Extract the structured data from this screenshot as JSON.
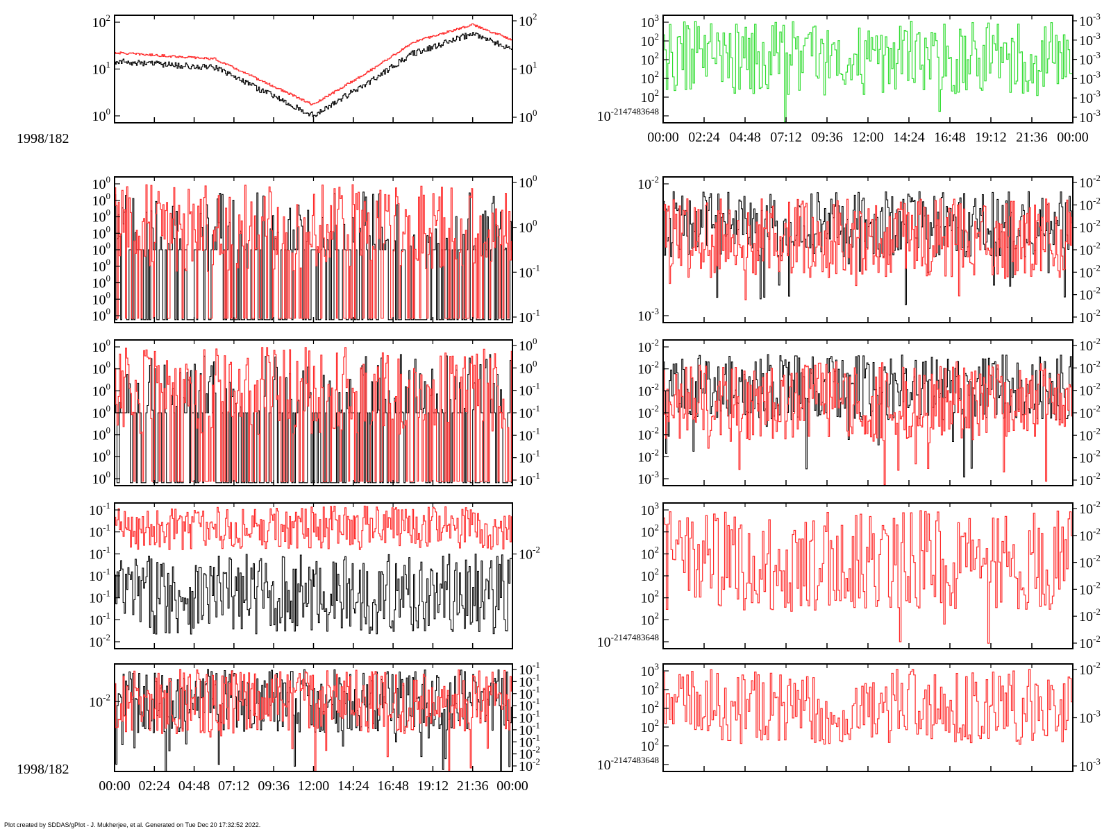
{
  "date_label_top": "1998/182",
  "date_label_bottom": "1998/182",
  "footer": "Plot created by SDDAS/gPlot - J. Mukherjee, et al.  Generated on Tue Dec 20 17:32:52 2022.",
  "colors": {
    "primary": "#000000",
    "secondary": "#ff0000",
    "tertiary": "#00ff00"
  },
  "chart_data": [
    {
      "id": "left-1",
      "type": "line",
      "scale": "log",
      "x_range": [
        "00:00",
        "00:00"
      ],
      "left_ticks": [
        "10^2",
        "10^1",
        "10^0"
      ],
      "right_ticks": [
        "10^2",
        "10^1",
        "10^0"
      ],
      "series": [
        {
          "color": "black",
          "profile": "spectrum_low",
          "noise": 0.5
        },
        {
          "color": "red",
          "profile": "spectrum_high",
          "noise": 0.15
        }
      ]
    },
    {
      "id": "left-2",
      "type": "line",
      "scale": "log",
      "left_ticks": [
        "10^0",
        "10^0",
        "10^0",
        "10^0",
        "10^0",
        "10^0",
        "10^0",
        "10^0",
        "10^0"
      ],
      "right_ticks": [
        "10^0",
        "10^0",
        "10^-1",
        "10^-1"
      ],
      "series": [
        {
          "color": "black",
          "profile": "sparse_low"
        },
        {
          "color": "red",
          "profile": "sparse_high"
        }
      ]
    },
    {
      "id": "left-3",
      "type": "line",
      "scale": "log",
      "left_ticks": [
        "10^0",
        "10^0",
        "10^0",
        "10^0",
        "10^0",
        "10^0",
        "10^0"
      ],
      "right_ticks": [
        "10^0",
        "10^0",
        "10^-1",
        "10^-1",
        "10^-1",
        "10^-1",
        "10^-1"
      ],
      "series": [
        {
          "color": "black",
          "profile": "sparse_low"
        },
        {
          "color": "red",
          "profile": "sparse_high"
        }
      ]
    },
    {
      "id": "left-4",
      "type": "line",
      "scale": "log",
      "left_ticks": [
        "10^-1",
        "10^-1",
        "10^-1",
        "10^-1",
        "10^-1",
        "10^-1",
        "10^-2"
      ],
      "right_ticks": [
        "10^-2"
      ],
      "series": [
        {
          "color": "black",
          "profile": "dense_band"
        },
        {
          "color": "red",
          "profile": "upper_band"
        }
      ]
    },
    {
      "id": "left-5",
      "type": "line",
      "scale": "log",
      "left_ticks": [
        "10^-2"
      ],
      "right_ticks": [
        "10^-1",
        "10^-1",
        "10^-1",
        "10^-1",
        "10^-1",
        "10^-1",
        "10^-1",
        "10^-2",
        "10^-2"
      ],
      "x_tick_labels": [
        "00:00",
        "02:24",
        "04:48",
        "07:12",
        "09:36",
        "12:00",
        "14:24",
        "16:48",
        "19:12",
        "21:36",
        "00:00"
      ],
      "series": [
        {
          "color": "black",
          "profile": "noise_mid"
        },
        {
          "color": "red",
          "profile": "noise_mid"
        }
      ]
    },
    {
      "id": "right-1",
      "type": "line",
      "scale": "log",
      "left_ticks": [
        "10^3",
        "10^2",
        "10^2",
        "10^2",
        "10^2",
        "10^-2147483648"
      ],
      "right_ticks": [
        "10^-3",
        "10^-3",
        "10^-3",
        "10^-3",
        "10^-3",
        "10^-3"
      ],
      "x_tick_labels": [
        "00:00",
        "02:24",
        "04:48",
        "07:12",
        "09:36",
        "12:00",
        "14:24",
        "16:48",
        "19:12",
        "21:36",
        "00:00"
      ],
      "series": [
        {
          "color": "green",
          "profile": "step_noise"
        }
      ]
    },
    {
      "id": "right-2",
      "type": "line",
      "scale": "log",
      "left_ticks": [
        "10^-2",
        "10^-3"
      ],
      "right_ticks": [
        "10^-2",
        "10^-2",
        "10^-2",
        "10^-2",
        "10^-2",
        "10^-2",
        "10^-2"
      ],
      "series": [
        {
          "color": "black",
          "profile": "dense_upper"
        },
        {
          "color": "red",
          "profile": "dense_upper_red"
        }
      ]
    },
    {
      "id": "right-3",
      "type": "line",
      "scale": "log",
      "left_ticks": [
        "10^-2",
        "10^-2",
        "10^-2",
        "10^-2",
        "10^-2",
        "10^-2",
        "10^-3"
      ],
      "right_ticks": [
        "10^-2",
        "10^-2",
        "10^-2",
        "10^-2",
        "10^-2",
        "10^-2",
        "10^-2"
      ],
      "series": [
        {
          "color": "black",
          "profile": "dense_upper"
        },
        {
          "color": "red",
          "profile": "dense_upper_red"
        }
      ]
    },
    {
      "id": "right-4",
      "type": "line",
      "scale": "log",
      "left_ticks": [
        "10^3",
        "10^2",
        "10^2",
        "10^2",
        "10^2",
        "10^2",
        "10^-2147483648"
      ],
      "right_ticks": [
        "10^-2",
        "10^-2",
        "10^-2",
        "10^-2",
        "10^-2",
        "10^-2"
      ],
      "series": [
        {
          "color": "red",
          "profile": "step_noise"
        }
      ]
    },
    {
      "id": "right-5",
      "type": "line",
      "scale": "log",
      "left_ticks": [
        "10^3",
        "10^2",
        "10^2",
        "10^2",
        "10^2",
        "10^-2147483648"
      ],
      "right_ticks": [
        "10^-2",
        "10^-3",
        "10^-3"
      ],
      "series": [
        {
          "color": "red",
          "profile": "step_noise"
        }
      ]
    }
  ]
}
